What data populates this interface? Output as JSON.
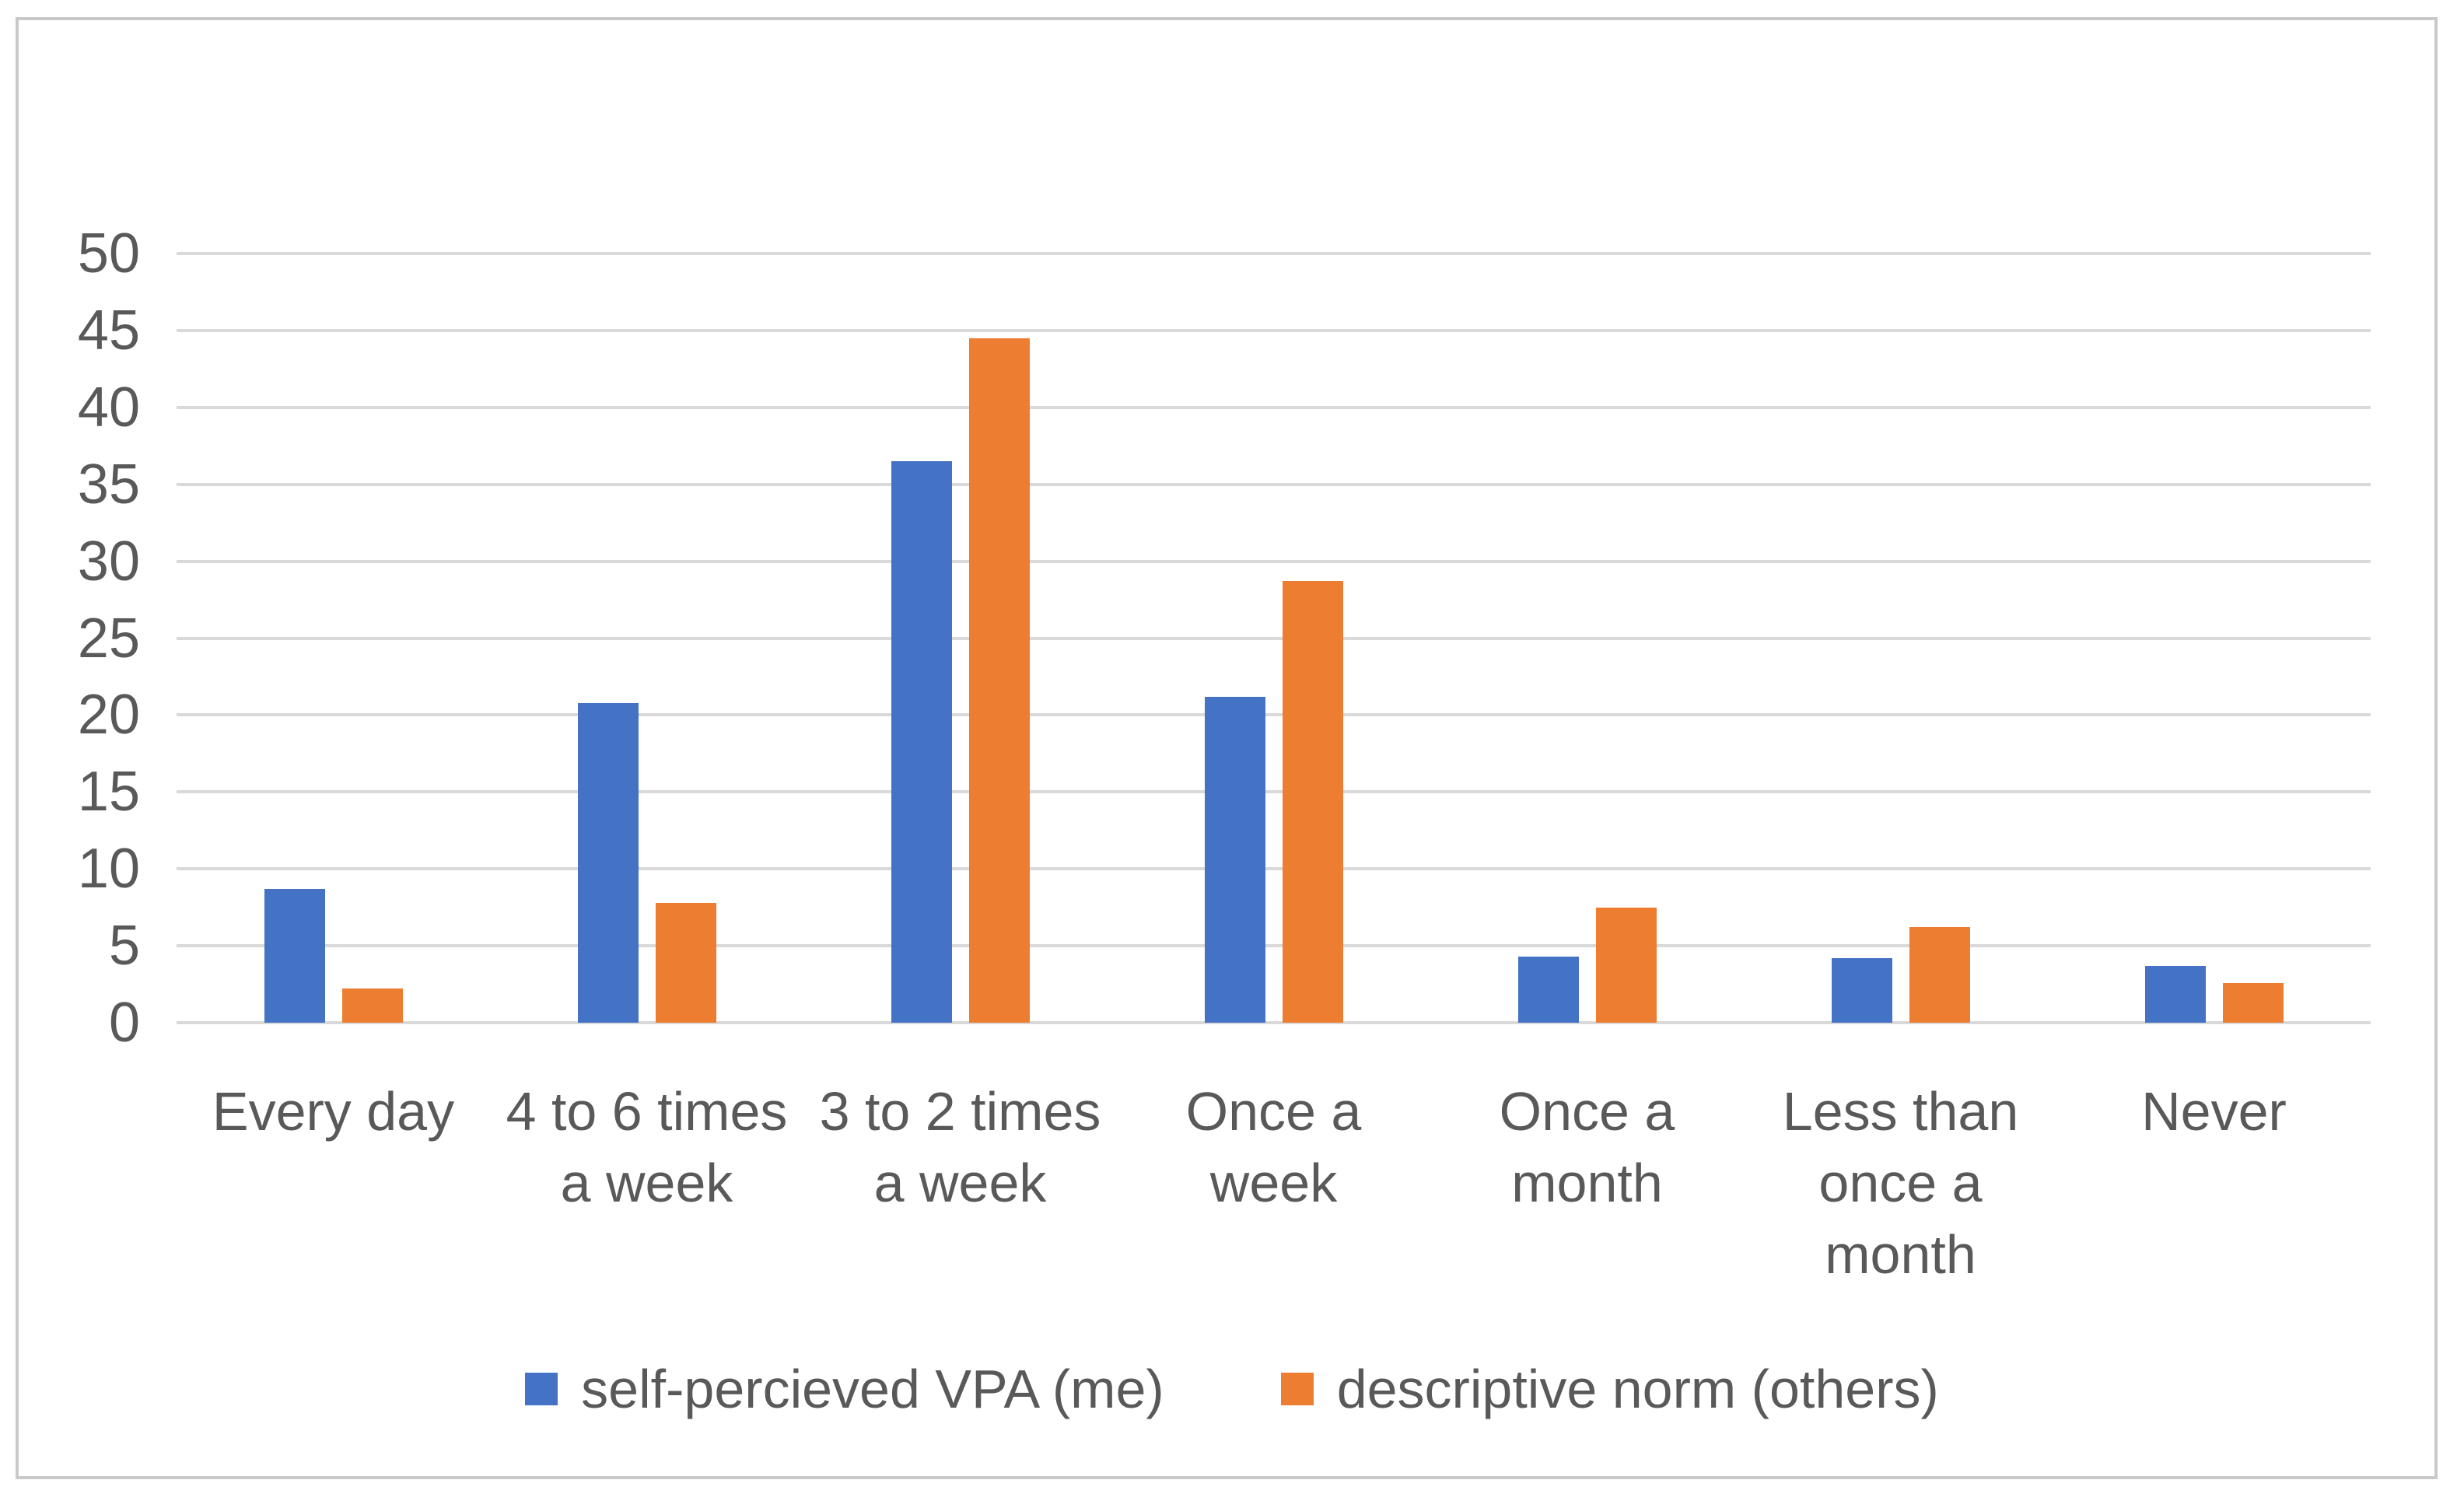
{
  "frame": {
    "border_color": "#c9c9c9",
    "background": "#ffffff"
  },
  "chart_data": {
    "type": "bar",
    "title": "",
    "xlabel": "",
    "ylabel": "",
    "categories": [
      "Every day",
      "4 to 6 times\na week",
      "3 to 2 times\na week",
      "Once a\nweek",
      "Once a\nmonth",
      "Less than\nonce a\nmonth",
      "Never"
    ],
    "series": [
      {
        "name": "self-percieved VPA (me)",
        "color": "#4472C4",
        "values": [
          8.7,
          20.8,
          36.5,
          21.2,
          4.3,
          4.2,
          3.7
        ]
      },
      {
        "name": "descriptive norm (others)",
        "color": "#ED7D31",
        "values": [
          2.2,
          7.8,
          44.5,
          28.7,
          7.5,
          6.2,
          2.6
        ]
      }
    ],
    "ylim": [
      0,
      50
    ],
    "yticks": [
      50,
      45,
      40,
      35,
      30,
      25,
      20,
      15,
      10,
      5,
      0
    ],
    "grid": true,
    "gridline_color": "#d9d9d9",
    "text_color": "#595959",
    "legend_position": "bottom"
  }
}
